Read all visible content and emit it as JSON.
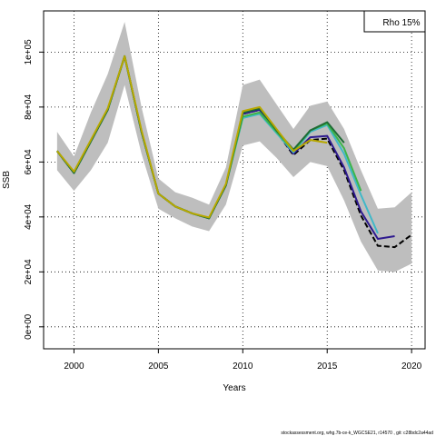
{
  "chart_data": {
    "type": "line",
    "xlabel": "Years",
    "ylabel": "SSB",
    "xlim": [
      1998.2,
      2020.8
    ],
    "ylim": [
      -8000,
      115000
    ],
    "x_ticks": [
      2000,
      2005,
      2010,
      2015,
      2020
    ],
    "x_tick_labels": [
      "2000",
      "2005",
      "2010",
      "2015",
      "2020"
    ],
    "y_ticks": [
      0,
      20000,
      40000,
      60000,
      80000,
      100000
    ],
    "y_tick_labels": [
      "0e+00",
      "2e+04",
      "4e+04",
      "6e+04",
      "8e+04",
      "1e+05"
    ],
    "grid": true,
    "legend_text": "Rho 15%",
    "legend_position": "top-right",
    "footer": "stockassessment.org, whg.7b-ce-k_WGCSE21, r14570 , git: c28bdc2a44ad",
    "confidence_band": {
      "color": "#bebebe",
      "x": [
        1999,
        2000,
        2001,
        2002,
        2003,
        2004,
        2005,
        2006,
        2007,
        2008,
        2009,
        2010,
        2011,
        2012,
        2013,
        2014,
        2015,
        2016,
        2017,
        2018,
        2019,
        2020
      ],
      "upper": [
        71000,
        62000,
        78000,
        92000,
        111000,
        80000,
        54000,
        49000,
        47000,
        44500,
        58000,
        88000,
        90000,
        81000,
        72000,
        80500,
        82000,
        72000,
        57000,
        43000,
        43500,
        49000
      ],
      "lower": [
        57000,
        49500,
        57000,
        67000,
        88000,
        63000,
        43000,
        39500,
        36500,
        34800,
        44500,
        66000,
        67500,
        61500,
        54500,
        60000,
        58500,
        46000,
        31000,
        20500,
        20000,
        23000
      ]
    },
    "series": [
      {
        "color": "#000000",
        "dashed": true,
        "x": [
          1999,
          2000,
          2001,
          2002,
          2003,
          2004,
          2005,
          2006,
          2007,
          2008,
          2009,
          2010,
          2011,
          2012,
          2013,
          2014,
          2015,
          2016,
          2017,
          2018,
          2019,
          2020
        ],
        "values": [
          64000,
          56000,
          67500,
          79000,
          98500,
          71000,
          48500,
          43800,
          41300,
          39500,
          51500,
          77500,
          79000,
          71000,
          62500,
          68000,
          68500,
          57000,
          40500,
          29500,
          29000,
          33500
        ]
      },
      {
        "color": "#2e1a8f",
        "dashed": false,
        "x": [
          1999,
          2000,
          2001,
          2002,
          2003,
          2004,
          2005,
          2006,
          2007,
          2008,
          2009,
          2010,
          2011,
          2012,
          2013,
          2014,
          2015,
          2016,
          2017,
          2018,
          2019
        ],
        "values": [
          64000,
          56000,
          67500,
          79000,
          98500,
          71000,
          48500,
          43800,
          41300,
          39500,
          51500,
          77500,
          79000,
          71000,
          63000,
          69000,
          69500,
          58000,
          42000,
          32000,
          33000
        ]
      },
      {
        "color": "#40b8c8",
        "dashed": false,
        "x": [
          1999,
          2000,
          2001,
          2002,
          2003,
          2004,
          2005,
          2006,
          2007,
          2008,
          2009,
          2010,
          2011,
          2012,
          2013,
          2014,
          2015,
          2016,
          2017,
          2018
        ],
        "values": [
          64000,
          56000,
          67500,
          79000,
          98500,
          71000,
          48500,
          43800,
          41300,
          39500,
          51500,
          76000,
          77500,
          70500,
          63500,
          71000,
          73500,
          63000,
          48000,
          34000
        ]
      },
      {
        "color": "#3cb54a",
        "dashed": false,
        "x": [
          1999,
          2000,
          2001,
          2002,
          2003,
          2004,
          2005,
          2006,
          2007,
          2008,
          2009,
          2010,
          2011,
          2012,
          2013,
          2014,
          2015,
          2016,
          2017
        ],
        "values": [
          64000,
          56000,
          67500,
          79000,
          98500,
          71000,
          48500,
          43800,
          41300,
          39500,
          51500,
          76500,
          78000,
          71000,
          64000,
          71500,
          74000,
          65000,
          49500
        ]
      },
      {
        "color": "#1e6b35",
        "dashed": false,
        "x": [
          1999,
          2000,
          2001,
          2002,
          2003,
          2004,
          2005,
          2006,
          2007,
          2008,
          2009,
          2010,
          2011,
          2012,
          2013,
          2014,
          2015,
          2016
        ],
        "values": [
          64000,
          56000,
          67500,
          79000,
          98500,
          71000,
          48500,
          43800,
          41300,
          39500,
          51500,
          78000,
          79500,
          71500,
          64500,
          71500,
          74500,
          67000
        ]
      },
      {
        "color": "#b8a800",
        "dashed": false,
        "x": [
          1999,
          2000,
          2001,
          2002,
          2003,
          2004,
          2005,
          2006,
          2007,
          2008,
          2009,
          2010,
          2011,
          2012,
          2013,
          2014,
          2015
        ],
        "values": [
          64000,
          56500,
          68000,
          79500,
          98500,
          71500,
          48500,
          43800,
          41300,
          39800,
          52000,
          78500,
          80000,
          72000,
          64000,
          68000,
          67000
        ]
      }
    ]
  }
}
